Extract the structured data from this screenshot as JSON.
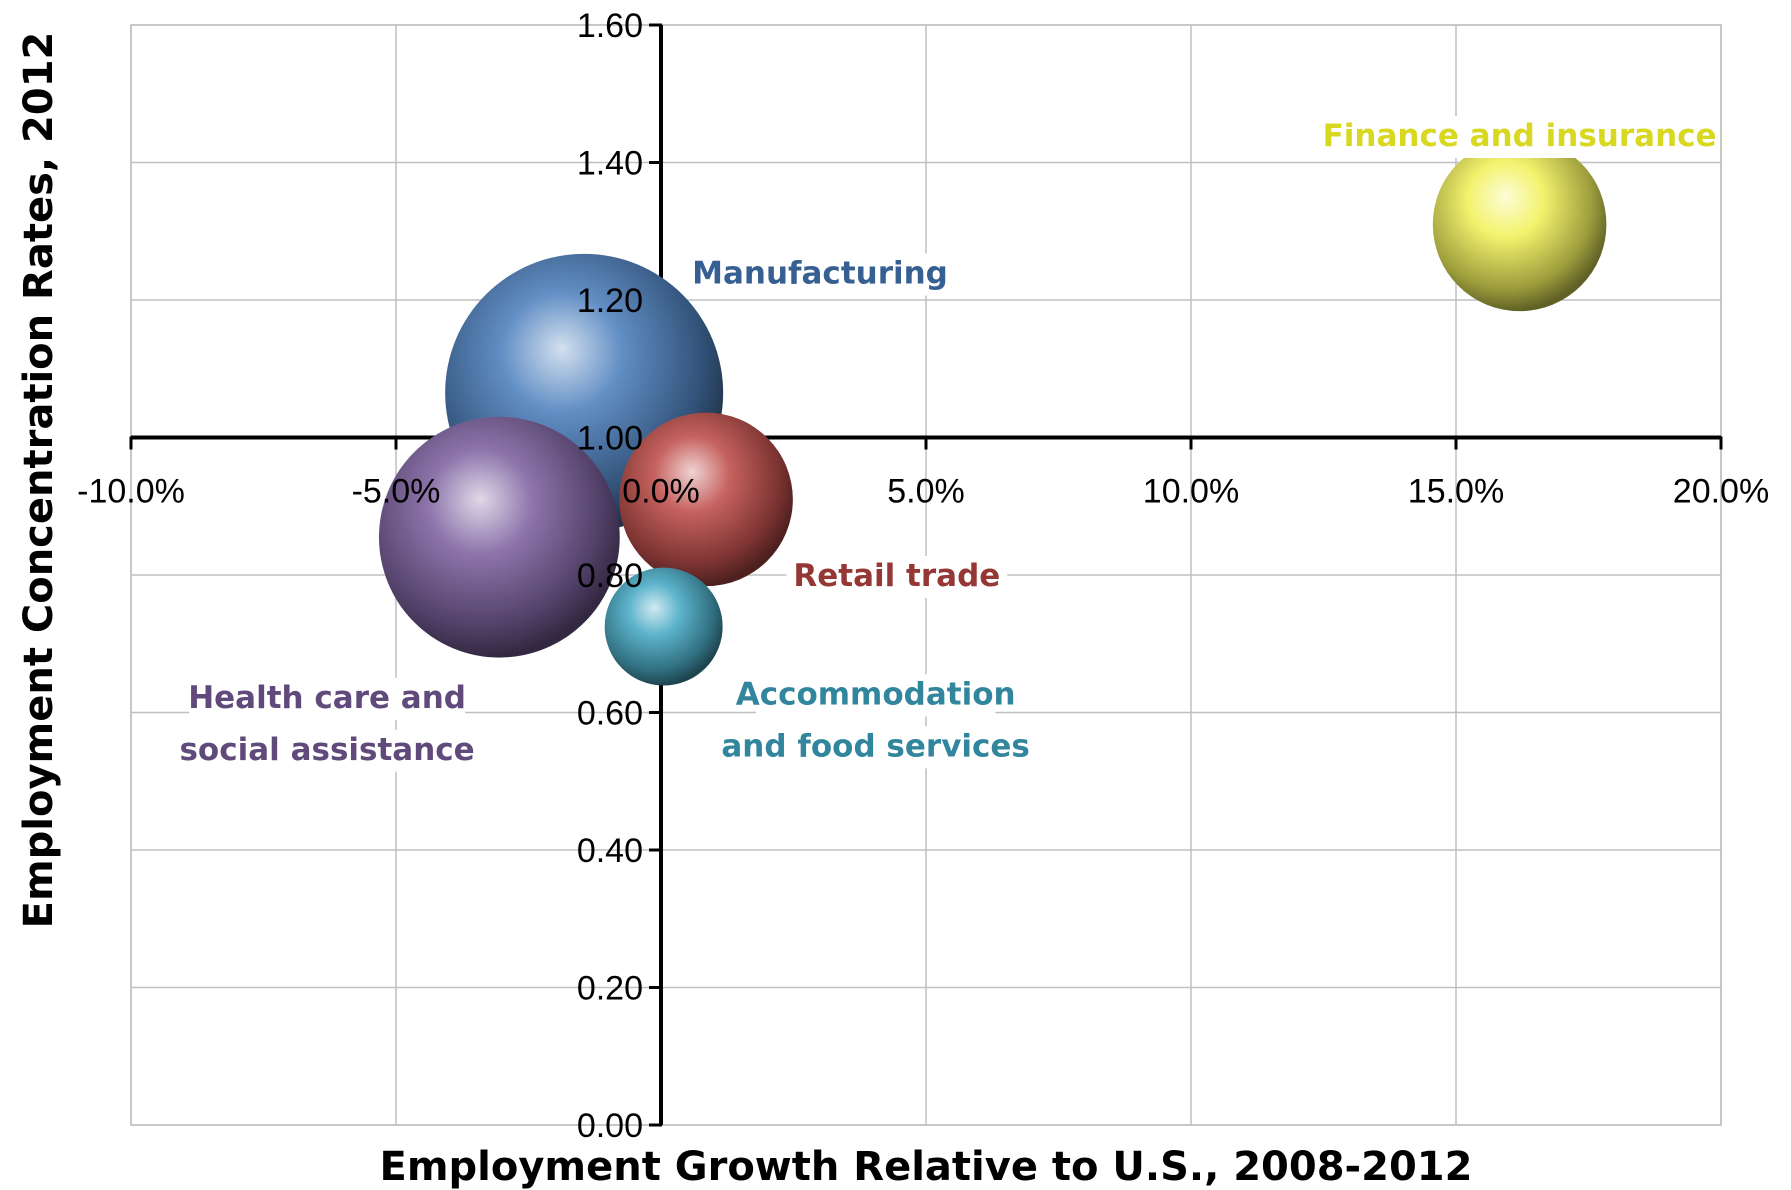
{
  "chart_data": {
    "type": "bubble",
    "title": "",
    "xlabel": "Employment Growth Relative to U.S., 2008-2012",
    "ylabel": "Employment Concentration Rates, 2012",
    "xlim": [
      -0.1,
      0.2
    ],
    "ylim": [
      0.0,
      1.6
    ],
    "x_ticks": [
      -0.1,
      -0.05,
      0.0,
      0.05,
      0.1,
      0.15,
      0.2
    ],
    "x_tick_labels": [
      "-10.0%",
      "-5.0%",
      "0.0%",
      "5.0%",
      "10.0%",
      "15.0%",
      "20.0%"
    ],
    "y_ticks": [
      0.0,
      0.2,
      0.4,
      0.6,
      0.8,
      1.0,
      1.2,
      1.4,
      1.6
    ],
    "y_tick_labels": [
      "0.00",
      "0.20",
      "0.40",
      "0.60",
      "0.80",
      "1.00",
      "1.20",
      "1.40",
      "1.60"
    ],
    "x_axis_crosses_y_at": 1.0,
    "y_axis_crosses_x_at": 0.0,
    "grid": true,
    "legend": "none",
    "series": [
      {
        "label_lines": [
          "Manufacturing"
        ],
        "x": -0.0145,
        "y": 1.065,
        "size": 1.0,
        "color": "#4f81bd",
        "label_color": "#376092",
        "label_at": {
          "x": 0.03,
          "y": 1.24
        }
      },
      {
        "label_lines": [
          "Finance and insurance"
        ],
        "x": 0.162,
        "y": 1.31,
        "size": 0.39,
        "color": "#f2f25e",
        "label_color": "#d8d820",
        "label_at": {
          "x": 0.162,
          "y": 1.44
        }
      },
      {
        "label_lines": [
          "Retail trade"
        ],
        "x": 0.0085,
        "y": 0.91,
        "size": 0.39,
        "color": "#c0504d",
        "label_color": "#953735",
        "label_at": {
          "x": 0.0445,
          "y": 0.8
        }
      },
      {
        "label_lines": [
          "Health care and",
          "social assistance"
        ],
        "x": -0.0305,
        "y": 0.855,
        "size": 0.75,
        "color": "#8064a2",
        "label_color": "#604a7b",
        "label_at": {
          "x": -0.063,
          "y": 0.585
        }
      },
      {
        "label_lines": [
          "Accommodation",
          "and food services"
        ],
        "x": 0.0005,
        "y": 0.725,
        "size": 0.18,
        "color": "#4bacc6",
        "label_color": "#31859c",
        "label_at": {
          "x": 0.0405,
          "y": 0.59
        }
      }
    ]
  }
}
